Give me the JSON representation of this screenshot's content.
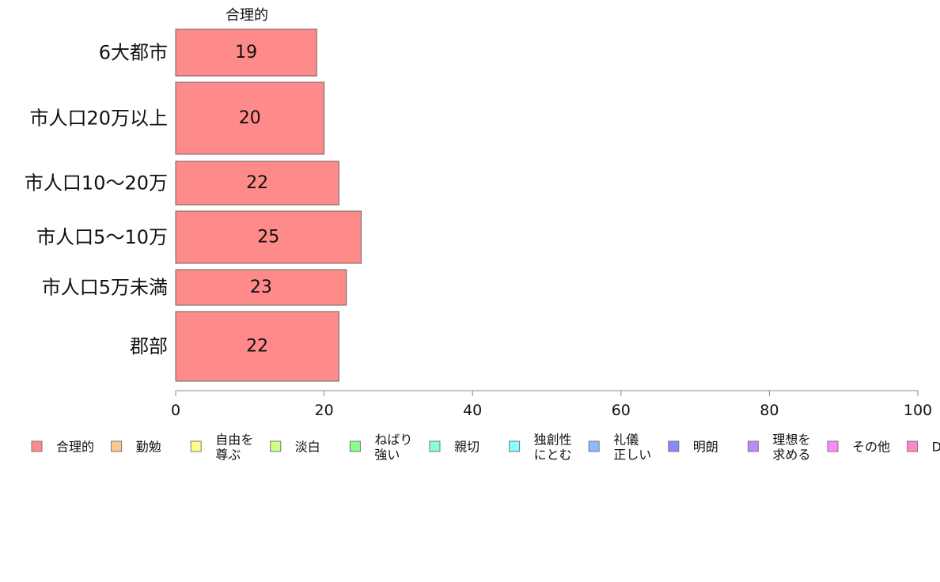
{
  "chart_data": {
    "type": "bar",
    "orientation": "horizontal",
    "stacked": true,
    "series_header": "合理的",
    "categories": [
      "6大都市",
      "市人口20万以上",
      "市人口10〜20万",
      "市人口5〜10万",
      "市人口5万未満",
      "郡部"
    ],
    "series": [
      {
        "name": "合理的",
        "values": [
          19,
          20,
          22,
          25,
          23,
          22
        ]
      }
    ],
    "xlim": [
      0,
      100
    ],
    "xticks": [
      "0",
      "20",
      "40",
      "60",
      "80",
      "100"
    ],
    "grid": false,
    "legend_position": "bottom",
    "legend": [
      {
        "lines": [
          "合理的"
        ],
        "color": "#ff8a8a"
      },
      {
        "lines": [
          "勤勉"
        ],
        "color": "#ffc890"
      },
      {
        "lines": [
          "自由を",
          "尊ぶ"
        ],
        "color": "#ffff88"
      },
      {
        "lines": [
          "淡白"
        ],
        "color": "#ccff88"
      },
      {
        "lines": [
          "ねばり",
          "強い"
        ],
        "color": "#88ff88"
      },
      {
        "lines": [
          "親切"
        ],
        "color": "#88ffcc"
      },
      {
        "lines": [
          "独創性",
          "にとむ"
        ],
        "color": "#88ffff"
      },
      {
        "lines": [
          "礼儀",
          "正しい"
        ],
        "color": "#88bbff"
      },
      {
        "lines": [
          "明朗"
        ],
        "color": "#8888ff"
      },
      {
        "lines": [
          "理想を",
          "求める"
        ],
        "color": "#bb88ff"
      },
      {
        "lines": [
          "その他"
        ],
        "color": "#ff88ff"
      },
      {
        "lines": [
          "D"
        ],
        "color": "#ff88cc"
      }
    ]
  }
}
